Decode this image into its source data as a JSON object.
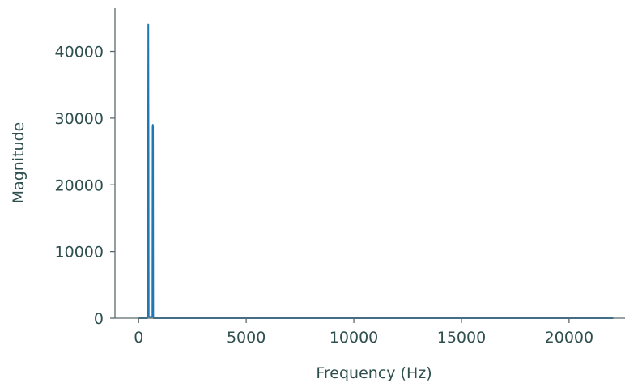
{
  "chart_data": {
    "type": "line",
    "title": "",
    "xlabel": "Frequency (Hz)",
    "ylabel": "Magnitude",
    "xlim": [
      -1100,
      22600
    ],
    "ylim": [
      0,
      46500
    ],
    "x_ticks": [
      0,
      5000,
      10000,
      15000,
      20000
    ],
    "x_tick_labels": [
      "0",
      "5000",
      "10000",
      "15000",
      "20000"
    ],
    "y_ticks": [
      0,
      10000,
      20000,
      30000,
      40000
    ],
    "y_tick_labels": [
      "0",
      "10000",
      "20000",
      "30000",
      "40000"
    ],
    "grid": false,
    "series": [
      {
        "color": "#1f77b4",
        "x": [
          0,
          400,
          430,
          440,
          450,
          460,
          470,
          480,
          500,
          520,
          540,
          560,
          580,
          600,
          620,
          640,
          650,
          660,
          670,
          680,
          700,
          800,
          22050
        ],
        "y": [
          0,
          0,
          200,
          28000,
          44000,
          28000,
          300,
          250,
          200,
          200,
          200,
          200,
          200,
          200,
          200,
          250,
          28800,
          29000,
          28800,
          300,
          0,
          0,
          0
        ]
      }
    ]
  }
}
